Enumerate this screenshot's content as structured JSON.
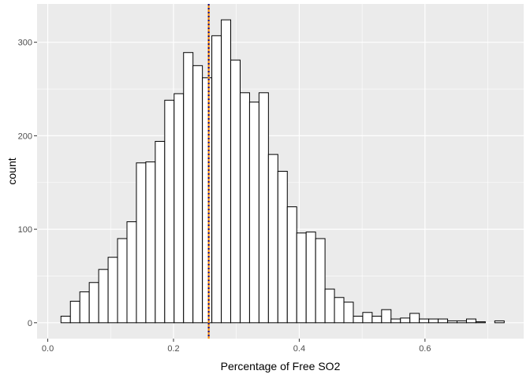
{
  "chart_data": {
    "type": "bar",
    "subtype": "histogram",
    "title": "",
    "xlabel": "Percentage of Free SO2",
    "ylabel": "count",
    "xlim": [
      -0.017,
      0.757
    ],
    "ylim": [
      -17,
      341
    ],
    "x_ticks": [
      0.0,
      0.2,
      0.4,
      0.6
    ],
    "x_tick_labels": [
      "0.0",
      "0.2",
      "0.4",
      "0.6"
    ],
    "y_ticks": [
      0,
      100,
      200,
      300
    ],
    "y_tick_labels": [
      "0",
      "100",
      "200",
      "300"
    ],
    "bin_width": 0.015,
    "bin_starts": [
      0.021,
      0.036,
      0.051,
      0.066,
      0.081,
      0.096,
      0.111,
      0.126,
      0.141,
      0.156,
      0.171,
      0.186,
      0.201,
      0.216,
      0.231,
      0.246,
      0.261,
      0.276,
      0.291,
      0.306,
      0.321,
      0.336,
      0.351,
      0.366,
      0.381,
      0.396,
      0.411,
      0.426,
      0.441,
      0.456,
      0.471,
      0.486,
      0.501,
      0.516,
      0.531,
      0.546,
      0.561,
      0.576,
      0.591,
      0.606,
      0.621,
      0.636,
      0.651,
      0.666,
      0.681,
      0.696,
      0.711
    ],
    "counts": [
      7,
      23,
      33,
      43,
      57,
      70,
      90,
      108,
      171,
      172,
      194,
      238,
      245,
      289,
      275,
      262,
      307,
      324,
      281,
      246,
      236,
      246,
      180,
      162,
      124,
      96,
      97,
      90,
      36,
      27,
      22,
      7,
      11,
      7,
      14,
      4,
      5,
      10,
      4,
      4,
      4,
      2,
      2,
      4,
      1,
      0,
      2
    ],
    "reference_lines": [
      {
        "x": 0.256,
        "color": "#ff8c00",
        "style": "solid"
      },
      {
        "x": 0.256,
        "color": "#00008b",
        "style": "dotted"
      }
    ],
    "colors": {
      "panel_background": "#ebebeb",
      "grid": "#ffffff",
      "bar_fill": "#ffffff",
      "bar_outline": "#000000"
    },
    "grid": true,
    "legend": "none"
  }
}
